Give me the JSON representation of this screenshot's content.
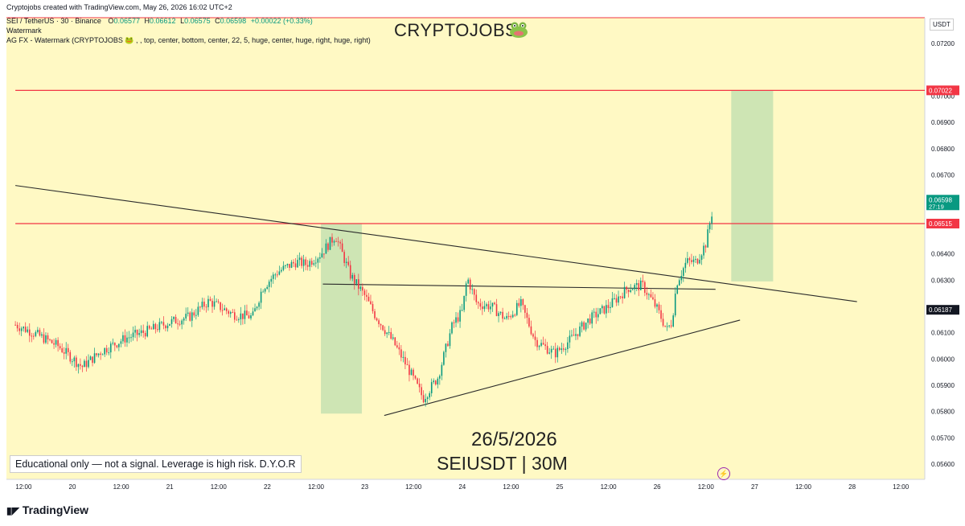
{
  "header": {
    "credit": "Cryptojobs created with TradingView.com, May 26, 2026 16:02 UTC+2",
    "symbol_line": "SEI / TetherUS · 30 · Binance",
    "open_label": "O",
    "open": "0.06577",
    "high_label": "H",
    "high": "0.06612",
    "low_label": "L",
    "low": "0.06575",
    "close_label": "C",
    "close": "0.06598",
    "change": "+0.00022 (+0.33%)"
  },
  "indicators": {
    "line1": "Watermark",
    "line2": "AG FX - Watermark (CRYPTOJOBS 🐸 , , top, center, bottom, center, 22, 5, huge, center, huge, right, huge, right)"
  },
  "watermark_text": "CRYPTOJOBS",
  "watermark_icon": "frog-icon",
  "date_text": "26/5/2026",
  "symbol_text": "SEIUSDT | 30M",
  "note": "Educational only — not a signal. Leverage is high risk. D.Y.O.R",
  "footer": "TradingView",
  "currency": "USDT",
  "alert_icon": "lightning-icon",
  "colors": {
    "up": "#089981",
    "down": "#f23645",
    "background": "#fff9c4",
    "resistance": "#f23645",
    "zone": "#a5d6a7"
  },
  "chart_data": {
    "type": "candlestick",
    "symbol": "SEIUSDT",
    "timeframe": "30",
    "ylim": [
      0.0555,
      0.073
    ],
    "y_ticks": [
      "0.07200",
      "0.07000",
      "0.06900",
      "0.06800",
      "0.06700",
      "0.06400",
      "0.06300",
      "0.06100",
      "0.06000",
      "0.05900",
      "0.05800",
      "0.05700",
      "0.05600"
    ],
    "y_tick_values": [
      0.072,
      0.07,
      0.069,
      0.068,
      0.067,
      0.064,
      0.063,
      0.061,
      0.06,
      0.059,
      0.058,
      0.057,
      0.056
    ],
    "x_ticks": [
      "12:00",
      "20",
      "12:00",
      "21",
      "12:00",
      "22",
      "12:00",
      "23",
      "12:00",
      "24",
      "12:00",
      "25",
      "12:00",
      "26",
      "12:00",
      "27",
      "12:00",
      "28",
      "12:00"
    ],
    "x_tick_days": [
      19.5,
      20,
      20.5,
      21,
      21.5,
      22,
      22.5,
      23,
      23.5,
      24,
      24.5,
      25,
      25.5,
      26,
      26.5,
      27,
      27.5,
      28,
      28.5
    ],
    "x_range": [
      19.415,
      28.6
    ],
    "path_days": [
      19.415,
      19.6,
      19.85,
      20.1,
      20.3,
      20.55,
      20.8,
      21.0,
      21.2,
      21.4,
      21.65,
      21.85,
      21.95,
      22.1,
      22.3,
      22.4,
      22.55,
      22.7,
      22.85,
      23.0,
      23.1,
      23.3,
      23.45,
      23.6,
      23.75,
      23.9,
      24.0,
      24.05,
      24.15,
      24.3,
      24.45,
      24.6,
      24.75,
      24.95,
      25.1,
      25.3,
      25.5,
      25.7,
      25.85,
      26.0,
      26.1,
      26.15,
      26.2,
      26.3,
      26.4,
      26.5,
      26.58
    ],
    "path_values": [
      0.0613,
      0.061,
      0.0605,
      0.0597,
      0.0603,
      0.0608,
      0.0611,
      0.0614,
      0.0616,
      0.0622,
      0.0617,
      0.0616,
      0.0627,
      0.0633,
      0.0637,
      0.0636,
      0.064,
      0.0647,
      0.0632,
      0.0624,
      0.0617,
      0.0606,
      0.0596,
      0.0585,
      0.0593,
      0.0613,
      0.0618,
      0.0631,
      0.0621,
      0.062,
      0.0615,
      0.0621,
      0.0607,
      0.0602,
      0.0607,
      0.0615,
      0.062,
      0.0627,
      0.0628,
      0.0619,
      0.0611,
      0.0614,
      0.0629,
      0.0637,
      0.0637,
      0.0644,
      0.0659
    ],
    "current_price": "0.06598",
    "countdown": "27:19",
    "last_price_tag": "0.06187",
    "resistance_levels": [
      {
        "label": "0.07022",
        "value": 0.07022,
        "from_day": 19.415
      },
      {
        "label": "0.06515",
        "value": 0.06515,
        "from_day": 19.415
      }
    ],
    "trendlines": [
      {
        "name": "descending",
        "x1": 19.415,
        "y1": 0.0666,
        "x2": 28.05,
        "y2": 0.06218
      },
      {
        "name": "horizontal",
        "x1": 22.57,
        "y1": 0.06285,
        "x2": 26.6,
        "y2": 0.06265
      },
      {
        "name": "ascending",
        "x1": 23.2,
        "y1": 0.05785,
        "x2": 26.85,
        "y2": 0.06148
      }
    ],
    "zones": [
      {
        "x1": 22.55,
        "x2": 22.97,
        "y_low": 0.05792,
        "y_high": 0.06515
      },
      {
        "x1": 26.76,
        "x2": 27.19,
        "y_low": 0.06295,
        "y_high": 0.07022
      }
    ]
  }
}
